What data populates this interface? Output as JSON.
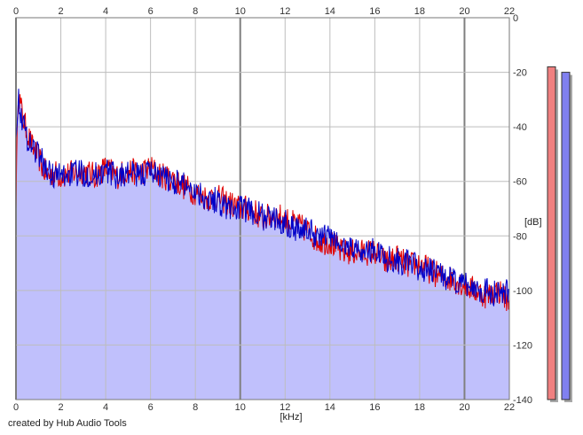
{
  "chart_data": {
    "type": "line",
    "title": "",
    "xlabel": "[kHz]",
    "ylabel": "[dB]",
    "xlim": [
      0,
      22
    ],
    "ylim": [
      -140,
      0
    ],
    "x_ticks": [
      "0",
      "2",
      "4",
      "6",
      "8",
      "10",
      "12",
      "14",
      "16",
      "18",
      "20",
      "22"
    ],
    "y_ticks": [
      "0",
      "-20",
      "-40",
      "-60",
      "-80",
      "-100",
      "-120",
      "-140"
    ],
    "grid": true,
    "series": [
      {
        "color": "#e00000",
        "x": [
          0,
          0.1,
          0.2,
          0.35,
          0.5,
          0.75,
          1,
          1.25,
          1.5,
          1.75,
          2,
          2.5,
          3,
          3.5,
          4,
          4.5,
          5,
          5.5,
          6,
          6.5,
          7,
          7.5,
          8,
          8.5,
          9,
          9.5,
          10,
          10.5,
          11,
          11.5,
          12,
          12.5,
          13,
          13.5,
          14,
          14.5,
          15,
          15.5,
          16,
          16.5,
          17,
          17.5,
          18,
          18.5,
          19,
          19.5,
          20,
          20.5,
          21,
          21.5,
          22
        ],
        "y": [
          -66,
          -26,
          -32,
          -38,
          -42,
          -48,
          -51,
          -56,
          -58,
          -57,
          -58,
          -57,
          -56,
          -58,
          -55,
          -58,
          -56,
          -57,
          -55,
          -58,
          -59,
          -62,
          -64,
          -66,
          -66,
          -68,
          -70,
          -70,
          -74,
          -72,
          -74,
          -76,
          -78,
          -82,
          -82,
          -86,
          -86,
          -86,
          -86,
          -90,
          -88,
          -91,
          -90,
          -93,
          -95,
          -96,
          -98,
          -100,
          -102,
          -100,
          -104
        ]
      },
      {
        "color": "#0000c8",
        "x": [
          0,
          0.1,
          0.2,
          0.35,
          0.5,
          0.75,
          1,
          1.25,
          1.5,
          1.75,
          2,
          2.5,
          3,
          3.5,
          4,
          4.5,
          5,
          5.5,
          6,
          6.5,
          7,
          7.5,
          8,
          8.5,
          9,
          9.5,
          10,
          10.5,
          11,
          11.5,
          12,
          12.5,
          13,
          13.5,
          14,
          14.5,
          15,
          15.5,
          16,
          16.5,
          17,
          17.5,
          18,
          18.5,
          19,
          19.5,
          20,
          20.5,
          21,
          21.5,
          22
        ],
        "y": [
          -40,
          -30,
          -34,
          -40,
          -44,
          -47,
          -50,
          -54,
          -57,
          -58,
          -58,
          -57,
          -57,
          -58,
          -56,
          -58,
          -57,
          -58,
          -56,
          -58,
          -60,
          -61,
          -63,
          -66,
          -67,
          -70,
          -70,
          -71,
          -73,
          -74,
          -75,
          -77,
          -78,
          -80,
          -80,
          -84,
          -84,
          -86,
          -85,
          -88,
          -89,
          -90,
          -92,
          -93,
          -94,
          -97,
          -98,
          -99,
          -100,
          -102,
          -100
        ]
      }
    ],
    "level_meters": [
      {
        "color": "#f08080",
        "value": -18
      },
      {
        "color": "#8080f0",
        "value": -20
      }
    ]
  },
  "footer": {
    "credit": "created by Hub Audio Tools"
  }
}
